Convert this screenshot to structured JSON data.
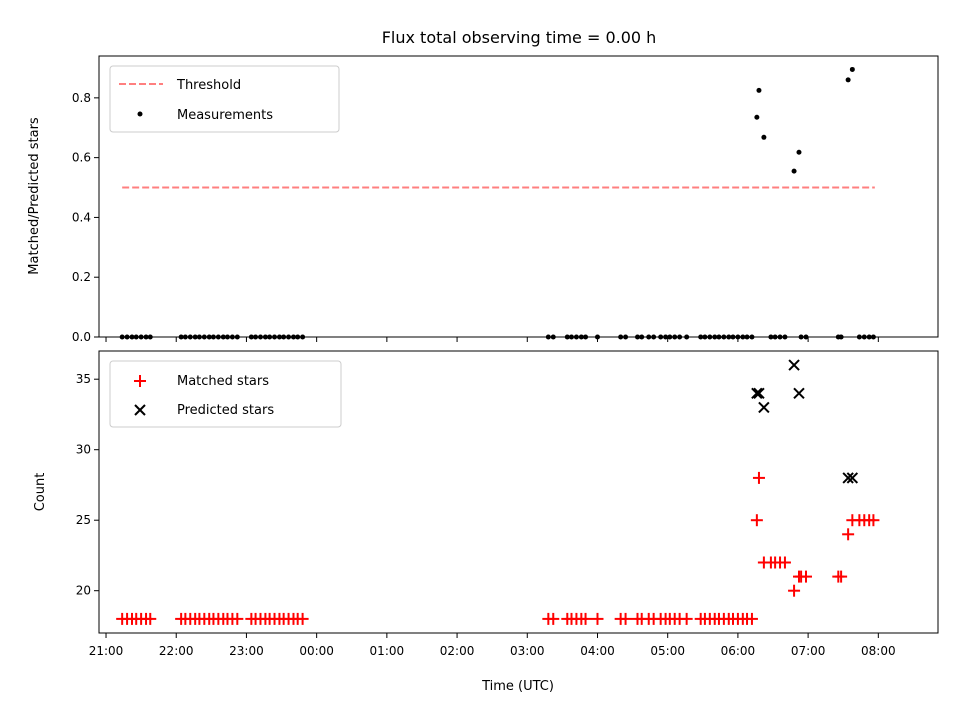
{
  "chart_data": [
    {
      "type": "scatter",
      "title": "Flux total observing time = 0.00 h",
      "xlabel": "",
      "ylabel": "Matched/Predicted stars",
      "xlim": [
        -0.1,
        11.85
      ],
      "ylim": [
        0.0,
        0.94
      ],
      "x_ticks": [
        0,
        1,
        2,
        3,
        4,
        5,
        6,
        7,
        8,
        9,
        10,
        11
      ],
      "y_ticks": [
        0.0,
        0.2,
        0.4,
        0.6,
        0.8
      ],
      "y_tick_labels": [
        "0.0",
        "0.2",
        "0.4",
        "0.6",
        "0.8"
      ],
      "legend": {
        "position": "top-left",
        "entries": [
          {
            "label": "Threshold",
            "marker": "dashed-line",
            "color": "#ff7f7f"
          },
          {
            "label": "Measurements",
            "marker": "dot",
            "color": "#000000"
          }
        ]
      },
      "threshold": {
        "value": 0.5,
        "x_range": [
          0.23,
          10.95
        ],
        "color": "#ff7f7f"
      },
      "series": [
        {
          "name": "Measurements",
          "color": "#000000",
          "x": [
            0.23,
            0.3,
            0.37,
            0.43,
            0.5,
            0.57,
            0.63,
            1.07,
            1.13,
            1.2,
            1.27,
            1.33,
            1.4,
            1.47,
            1.53,
            1.6,
            1.67,
            1.73,
            1.8,
            1.87,
            2.07,
            2.13,
            2.2,
            2.27,
            2.33,
            2.4,
            2.47,
            2.53,
            2.6,
            2.67,
            2.73,
            2.8,
            6.3,
            6.37,
            6.57,
            6.63,
            6.7,
            6.77,
            6.83,
            7.0,
            7.33,
            7.4,
            7.57,
            7.63,
            7.73,
            7.8,
            7.9,
            7.97,
            8.03,
            8.1,
            8.17,
            8.27,
            8.47,
            8.53,
            8.6,
            8.67,
            8.73,
            8.8,
            8.87,
            8.93,
            9.0,
            9.07,
            9.13,
            9.2,
            9.27,
            9.3,
            9.37,
            9.47,
            9.53,
            9.6,
            9.67,
            9.8,
            9.87,
            9.9,
            9.97,
            10.43,
            10.47,
            10.57,
            10.63,
            10.73,
            10.8,
            10.87,
            10.93
          ],
          "y": [
            0,
            0,
            0,
            0,
            0,
            0,
            0,
            0,
            0,
            0,
            0,
            0,
            0,
            0,
            0,
            0,
            0,
            0,
            0,
            0,
            0,
            0,
            0,
            0,
            0,
            0,
            0,
            0,
            0,
            0,
            0,
            0,
            0,
            0,
            0,
            0,
            0,
            0,
            0,
            0,
            0,
            0,
            0,
            0,
            0,
            0,
            0,
            0,
            0,
            0,
            0,
            0,
            0,
            0,
            0,
            0,
            0,
            0,
            0,
            0,
            0,
            0,
            0,
            0,
            0.735,
            0.825,
            0.668,
            0,
            0,
            0,
            0,
            0.555,
            0.618,
            0,
            0,
            0,
            0,
            0.86,
            0.895,
            0,
            0,
            0,
            0
          ]
        }
      ]
    },
    {
      "type": "scatter",
      "title": "",
      "xlabel": "Time (UTC)",
      "ylabel": "Count",
      "xlim": [
        -0.1,
        11.85
      ],
      "ylim": [
        17.0,
        37.0
      ],
      "x_ticks": [
        0,
        1,
        2,
        3,
        4,
        5,
        6,
        7,
        8,
        9,
        10,
        11
      ],
      "x_tick_labels": [
        "21:00",
        "22:00",
        "23:00",
        "00:00",
        "01:00",
        "02:00",
        "03:00",
        "04:00",
        "05:00",
        "06:00",
        "07:00",
        "08:00"
      ],
      "y_ticks": [
        20,
        25,
        30,
        35
      ],
      "y_tick_labels": [
        "20",
        "25",
        "30",
        "35"
      ],
      "legend": {
        "position": "top-left",
        "entries": [
          {
            "label": "Matched stars",
            "marker": "plus",
            "color": "#ff0000"
          },
          {
            "label": "Predicted stars",
            "marker": "x",
            "color": "#000000"
          }
        ]
      },
      "series": [
        {
          "name": "Matched stars",
          "color": "#ff0000",
          "marker": "plus",
          "x": [
            0.23,
            0.3,
            0.37,
            0.43,
            0.5,
            0.57,
            0.63,
            1.07,
            1.13,
            1.2,
            1.27,
            1.33,
            1.4,
            1.47,
            1.53,
            1.6,
            1.67,
            1.73,
            1.8,
            1.87,
            2.07,
            2.13,
            2.2,
            2.27,
            2.33,
            2.4,
            2.47,
            2.53,
            2.6,
            2.67,
            2.73,
            2.8,
            6.3,
            6.37,
            6.57,
            6.63,
            6.7,
            6.77,
            6.83,
            7.0,
            7.33,
            7.4,
            7.57,
            7.63,
            7.73,
            7.8,
            7.9,
            7.97,
            8.03,
            8.1,
            8.17,
            8.27,
            8.47,
            8.53,
            8.6,
            8.67,
            8.73,
            8.8,
            8.87,
            8.93,
            9.0,
            9.07,
            9.13,
            9.2,
            9.27,
            9.3,
            9.37,
            9.47,
            9.53,
            9.6,
            9.67,
            9.8,
            9.87,
            9.9,
            9.97,
            10.43,
            10.47,
            10.57,
            10.63,
            10.73,
            10.8,
            10.87,
            10.93
          ],
          "y": [
            18,
            18,
            18,
            18,
            18,
            18,
            18,
            18,
            18,
            18,
            18,
            18,
            18,
            18,
            18,
            18,
            18,
            18,
            18,
            18,
            18,
            18,
            18,
            18,
            18,
            18,
            18,
            18,
            18,
            18,
            18,
            18,
            18,
            18,
            18,
            18,
            18,
            18,
            18,
            18,
            18,
            18,
            18,
            18,
            18,
            18,
            18,
            18,
            18,
            18,
            18,
            18,
            18,
            18,
            18,
            18,
            18,
            18,
            18,
            18,
            18,
            18,
            18,
            18,
            25,
            28,
            22,
            22,
            22,
            22,
            22,
            20,
            21,
            21,
            21,
            21,
            21,
            24,
            25,
            25,
            25,
            25,
            25
          ]
        },
        {
          "name": "Predicted stars",
          "color": "#000000",
          "marker": "x",
          "x": [
            9.27,
            9.3,
            9.37,
            9.8,
            9.87,
            10.57,
            10.63
          ],
          "y": [
            34,
            34,
            33,
            36,
            34,
            28,
            28
          ]
        }
      ]
    }
  ]
}
